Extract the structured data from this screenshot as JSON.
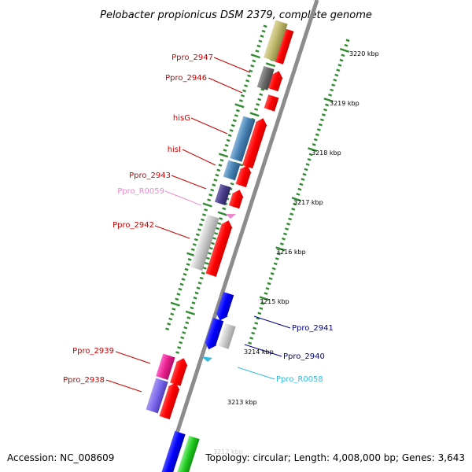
{
  "title": "Pelobacter propionicus DSM 2379, complete genome",
  "footer": {
    "accession": "Accession: NC_008609",
    "topology": "Topology: circular; Length: 4,008,000 bp; Genes: 3,643"
  },
  "colors": {
    "backbone": "#8c8c8c",
    "tick": "#2e8b2e",
    "forward_gene": "#ff0000",
    "reverse_gene": "#0000ff"
  },
  "scale_labels": [
    {
      "text": "3220 kbp",
      "kbp": 3220
    },
    {
      "text": "3219 kbp",
      "kbp": 3219
    },
    {
      "text": "3218 kbp",
      "kbp": 3218
    },
    {
      "text": "3217 kbp",
      "kbp": 3217
    },
    {
      "text": "3216 kbp",
      "kbp": 3216
    },
    {
      "text": "3215 kbp",
      "kbp": 3215
    },
    {
      "text": "3214 kbp",
      "kbp": 3214
    },
    {
      "text": "3213 kbp",
      "kbp": 3213
    },
    {
      "text": "3212 kbp",
      "kbp": 3212
    }
  ],
  "gene_labels": [
    {
      "name": "Ppro_2947",
      "color": "#cc0000",
      "side": "left"
    },
    {
      "name": "Ppro_2946",
      "color": "#cc0000",
      "side": "left"
    },
    {
      "name": "hisG",
      "color": "#cc0000",
      "side": "left"
    },
    {
      "name": "hisI",
      "color": "#cc0000",
      "side": "left"
    },
    {
      "name": "Ppro_2943",
      "color": "#cc0000",
      "side": "left"
    },
    {
      "name": "Ppro_R0059",
      "color": "#ee88cc",
      "side": "left"
    },
    {
      "name": "Ppro_2942",
      "color": "#cc0000",
      "side": "left"
    },
    {
      "name": "Ppro_2941",
      "color": "#00008b",
      "side": "right"
    },
    {
      "name": "Ppro_2940",
      "color": "#00008b",
      "side": "right"
    },
    {
      "name": "Ppro_R0058",
      "color": "#33bbdd",
      "side": "right"
    },
    {
      "name": "Ppro_2939",
      "color": "#cc0000",
      "side": "left"
    },
    {
      "name": "Ppro_2938",
      "color": "#cc0000",
      "side": "left"
    }
  ]
}
